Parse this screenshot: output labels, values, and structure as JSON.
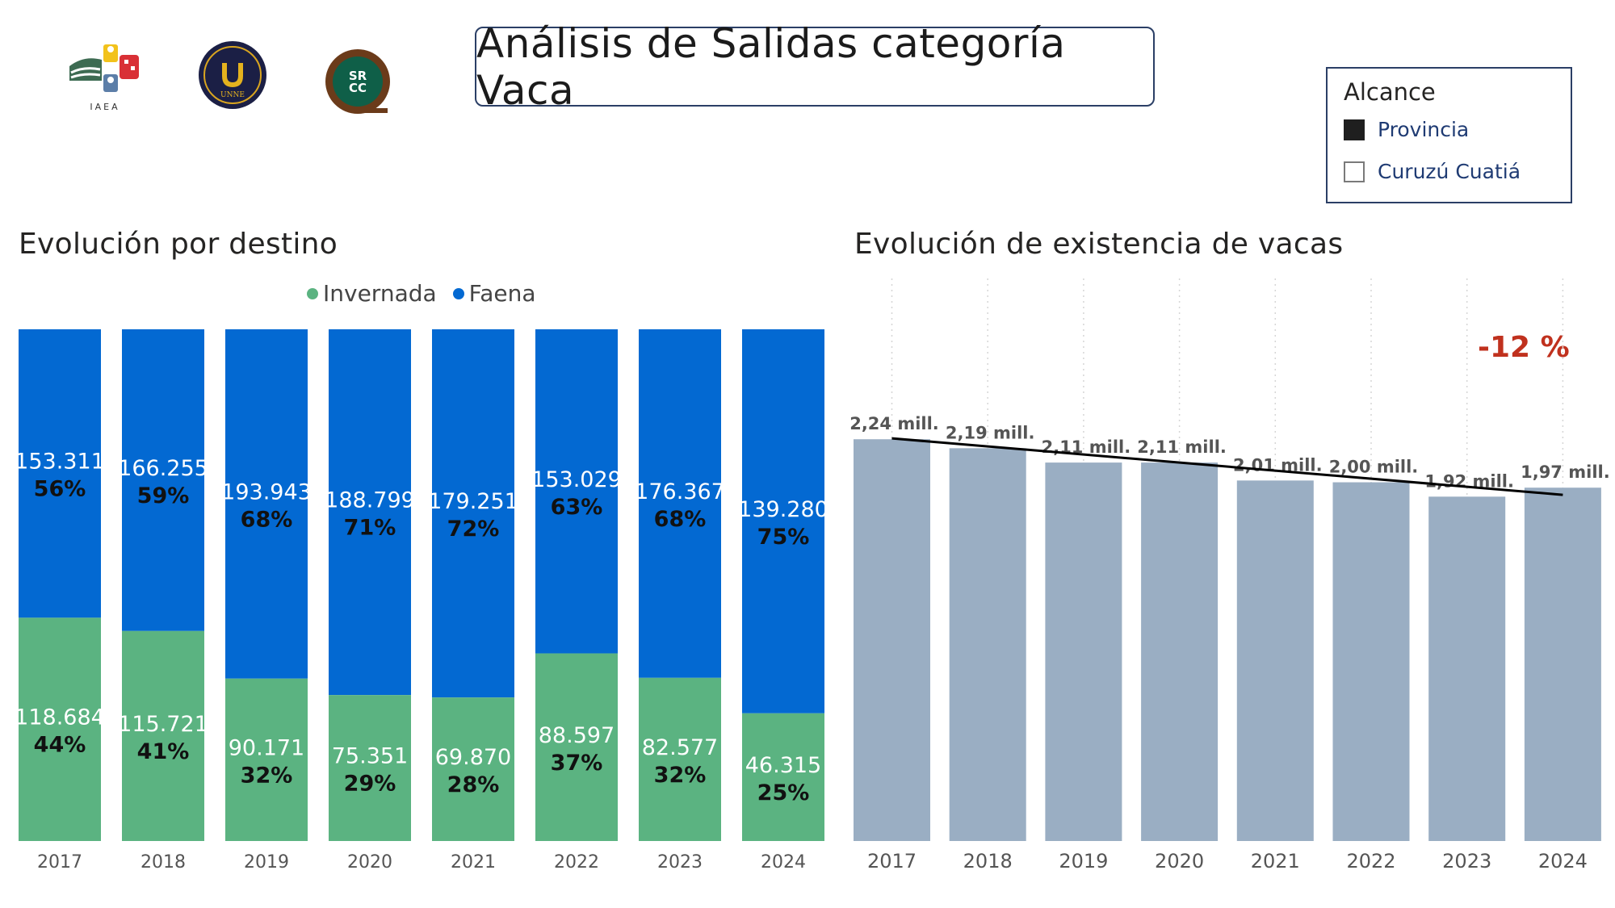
{
  "header": {
    "title": "Análisis de Salidas categoría Vaca",
    "logos": [
      {
        "name": "iaea-logo",
        "text": "IAEA"
      },
      {
        "name": "unne-seal",
        "text": "UNNE"
      },
      {
        "name": "srcc-logo",
        "text": "SRCC"
      }
    ]
  },
  "slicer": {
    "title": "Alcance",
    "options": [
      {
        "label": "Provincia",
        "selected": true
      },
      {
        "label": "Curuzú Cuatiá",
        "selected": false
      }
    ]
  },
  "colors": {
    "invernada": "#5bb381",
    "faena": "#0369d2",
    "stock_bars": "#9aaec3",
    "trend": "#000000",
    "change": "#c0311e"
  },
  "chart_data": [
    {
      "type": "bar",
      "stacked": "100%",
      "title": "Evolución por destino",
      "legend_position": "top-center",
      "categories": [
        "2017",
        "2018",
        "2019",
        "2020",
        "2021",
        "2022",
        "2023",
        "2024"
      ],
      "series": [
        {
          "name": "Invernada",
          "values": [
            118684,
            115721,
            90171,
            75351,
            69870,
            88597,
            82577,
            46315
          ],
          "labels": [
            "118.684",
            "115.721",
            "90.171",
            "75.351",
            "69.870",
            "88.597",
            "82.577",
            "46.315"
          ],
          "percent_labels": [
            "44%",
            "41%",
            "32%",
            "29%",
            "28%",
            "37%",
            "32%",
            "25%"
          ]
        },
        {
          "name": "Faena",
          "values": [
            153311,
            166255,
            193943,
            188799,
            179251,
            153029,
            176367,
            139280
          ],
          "labels": [
            "153.311",
            "166.255",
            "193.943",
            "188.799",
            "179.251",
            "153.029",
            "176.367",
            "139.280"
          ],
          "percent_labels": [
            "56%",
            "59%",
            "68%",
            "71%",
            "72%",
            "63%",
            "68%",
            "75%"
          ]
        }
      ]
    },
    {
      "type": "bar",
      "title": "Evolución de existencia de vacas",
      "categories": [
        "2017",
        "2018",
        "2019",
        "2020",
        "2021",
        "2022",
        "2023",
        "2024"
      ],
      "values": [
        2.24,
        2.19,
        2.11,
        2.11,
        2.01,
        2.0,
        1.92,
        1.97
      ],
      "labels": [
        "2,24 mill.",
        "2,19 mill.",
        "2,11 mill.",
        "2,11 mill.",
        "2,01 mill.",
        "2,00 mill.",
        "1,92 mill.",
        "1,97 mill."
      ],
      "unit": "millones de cabezas",
      "ylim": [
        0,
        2.7
      ],
      "trendline": {
        "start": 2.245,
        "end": 1.93
      },
      "annotation": "-12 %"
    }
  ]
}
